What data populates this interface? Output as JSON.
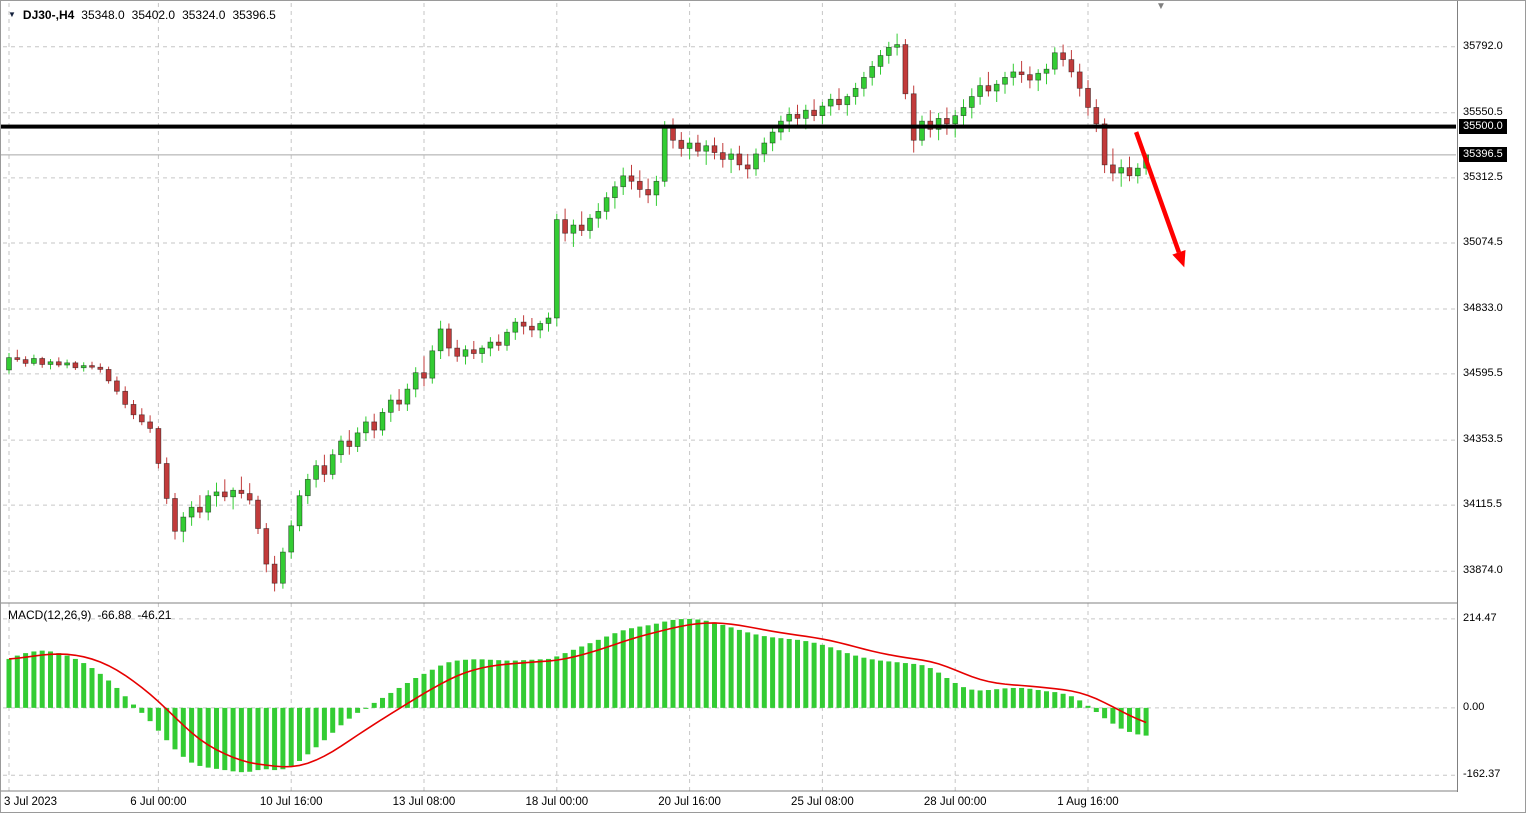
{
  "header": {
    "symbol_period": "DJ30-,H4",
    "open": "35348.0",
    "high": "35402.0",
    "low": "35324.0",
    "close": "35396.5"
  },
  "indicator": {
    "name": "MACD(12,26,9)",
    "main_value": "-66.88",
    "signal_value": "-46.21"
  },
  "icons": {
    "dropdown_triangle": "▼",
    "shift_marker": "▼"
  },
  "chart_data": {
    "type": "candlestick",
    "symbol": "DJ30-",
    "timeframe": "H4",
    "last_ohlc": {
      "open": 35348.0,
      "high": 35402.0,
      "low": 35324.0,
      "close": 35396.5
    },
    "price_axis": {
      "view_min": 33765,
      "view_max": 35952,
      "gridline_values": [
        35792.0,
        35550.5,
        35312.5,
        35074.5,
        34833.0,
        34595.5,
        34353.5,
        34115.5,
        33874.0
      ],
      "gridline_labels": [
        "35792.0",
        "35550.5",
        "35312.5",
        "35074.5",
        "34833.0",
        "34595.5",
        "34353.5",
        "34115.5",
        "33874.0"
      ]
    },
    "time_axis": {
      "labels": [
        {
          "text": "3 Jul 2023",
          "bar": 0
        },
        {
          "text": "6 Jul 00:00",
          "bar": 18
        },
        {
          "text": "10 Jul 16:00",
          "bar": 34
        },
        {
          "text": "13 Jul 08:00",
          "bar": 50
        },
        {
          "text": "18 Jul 00:00",
          "bar": 66
        },
        {
          "text": "20 Jul 16:00",
          "bar": 82
        },
        {
          "text": "25 Jul 08:00",
          "bar": 98
        },
        {
          "text": "28 Jul 00:00",
          "bar": 114
        },
        {
          "text": "1 Aug 16:00",
          "bar": 130
        }
      ]
    },
    "levels": {
      "resistance": {
        "price": 35500.0,
        "label": "35500.0"
      },
      "last_price": {
        "price": 35396.5,
        "label": "35396.5"
      }
    },
    "annotation_arrow": {
      "from_bar": 135.8,
      "from_price": 35480,
      "to_bar": 141.6,
      "to_price": 34985
    },
    "candles": [
      [
        34610,
        34672,
        34596,
        34655
      ],
      [
        34655,
        34684,
        34640,
        34648
      ],
      [
        34648,
        34660,
        34622,
        34634
      ],
      [
        34634,
        34666,
        34626,
        34652
      ],
      [
        34652,
        34658,
        34618,
        34630
      ],
      [
        34630,
        34650,
        34612,
        34640
      ],
      [
        34640,
        34656,
        34620,
        34628
      ],
      [
        34628,
        34648,
        34616,
        34636
      ],
      [
        34636,
        34642,
        34610,
        34618
      ],
      [
        34618,
        34638,
        34604,
        34626
      ],
      [
        34626,
        34640,
        34612,
        34620
      ],
      [
        34620,
        34634,
        34600,
        34612
      ],
      [
        34612,
        34622,
        34560,
        34570
      ],
      [
        34570,
        34586,
        34520,
        34532
      ],
      [
        34532,
        34550,
        34470,
        34484
      ],
      [
        34484,
        34500,
        34430,
        34446
      ],
      [
        34446,
        34470,
        34408,
        34420
      ],
      [
        34420,
        34444,
        34380,
        34396
      ],
      [
        34396,
        34404,
        34250,
        34268
      ],
      [
        34268,
        34290,
        34120,
        34140
      ],
      [
        34140,
        34160,
        33990,
        34020
      ],
      [
        34020,
        34090,
        33980,
        34072
      ],
      [
        34072,
        34130,
        34040,
        34108
      ],
      [
        34108,
        34152,
        34068,
        34090
      ],
      [
        34090,
        34170,
        34060,
        34150
      ],
      [
        34150,
        34198,
        34110,
        34164
      ],
      [
        34164,
        34210,
        34130,
        34146
      ],
      [
        34146,
        34180,
        34100,
        34170
      ],
      [
        34170,
        34220,
        34140,
        34158
      ],
      [
        34158,
        34196,
        34118,
        34134
      ],
      [
        34134,
        34150,
        34010,
        34030
      ],
      [
        34030,
        34050,
        33870,
        33900
      ],
      [
        33900,
        33930,
        33800,
        33830
      ],
      [
        33830,
        33960,
        33810,
        33944
      ],
      [
        33944,
        34060,
        33920,
        34040
      ],
      [
        34040,
        34170,
        34020,
        34150
      ],
      [
        34150,
        34230,
        34120,
        34210
      ],
      [
        34210,
        34280,
        34180,
        34260
      ],
      [
        34260,
        34300,
        34200,
        34228
      ],
      [
        34228,
        34320,
        34210,
        34300
      ],
      [
        34300,
        34370,
        34270,
        34350
      ],
      [
        34350,
        34390,
        34300,
        34330
      ],
      [
        34330,
        34400,
        34310,
        34380
      ],
      [
        34380,
        34440,
        34350,
        34420
      ],
      [
        34420,
        34450,
        34360,
        34390
      ],
      [
        34390,
        34470,
        34370,
        34455
      ],
      [
        34455,
        34520,
        34420,
        34500
      ],
      [
        34500,
        34540,
        34460,
        34485
      ],
      [
        34485,
        34560,
        34460,
        34540
      ],
      [
        34540,
        34620,
        34510,
        34600
      ],
      [
        34600,
        34660,
        34550,
        34580
      ],
      [
        34580,
        34700,
        34560,
        34680
      ],
      [
        34680,
        34790,
        34650,
        34760
      ],
      [
        34760,
        34780,
        34660,
        34690
      ],
      [
        34690,
        34720,
        34640,
        34660
      ],
      [
        34660,
        34700,
        34630,
        34684
      ],
      [
        34684,
        34716,
        34650,
        34670
      ],
      [
        34670,
        34700,
        34636,
        34690
      ],
      [
        34690,
        34730,
        34660,
        34712
      ],
      [
        34712,
        34740,
        34680,
        34700
      ],
      [
        34700,
        34760,
        34680,
        34748
      ],
      [
        34748,
        34800,
        34720,
        34785
      ],
      [
        34785,
        34810,
        34740,
        34770
      ],
      [
        34770,
        34800,
        34730,
        34756
      ],
      [
        34756,
        34790,
        34726,
        34780
      ],
      [
        34780,
        34820,
        34750,
        34800
      ],
      [
        34800,
        35180,
        34770,
        35160
      ],
      [
        35160,
        35200,
        35080,
        35110
      ],
      [
        35110,
        35160,
        35060,
        35140
      ],
      [
        35140,
        35190,
        35100,
        35120
      ],
      [
        35120,
        35180,
        35090,
        35165
      ],
      [
        35165,
        35220,
        35130,
        35190
      ],
      [
        35190,
        35260,
        35160,
        35240
      ],
      [
        35240,
        35300,
        35200,
        35280
      ],
      [
        35280,
        35350,
        35250,
        35320
      ],
      [
        35320,
        35360,
        35270,
        35300
      ],
      [
        35300,
        35340,
        35240,
        35270
      ],
      [
        35270,
        35310,
        35220,
        35250
      ],
      [
        35250,
        35320,
        35210,
        35300
      ],
      [
        35300,
        35520,
        35280,
        35500
      ],
      [
        35500,
        35530,
        35420,
        35450
      ],
      [
        35450,
        35480,
        35390,
        35420
      ],
      [
        35420,
        35460,
        35380,
        35440
      ],
      [
        35440,
        35470,
        35390,
        35410
      ],
      [
        35410,
        35450,
        35360,
        35430
      ],
      [
        35430,
        35460,
        35380,
        35405
      ],
      [
        35405,
        35440,
        35350,
        35380
      ],
      [
        35380,
        35420,
        35330,
        35400
      ],
      [
        35400,
        35430,
        35340,
        35360
      ],
      [
        35360,
        35400,
        35310,
        35345
      ],
      [
        35345,
        35420,
        35320,
        35400
      ],
      [
        35400,
        35460,
        35370,
        35440
      ],
      [
        35440,
        35500,
        35410,
        35480
      ],
      [
        35480,
        35540,
        35450,
        35520
      ],
      [
        35520,
        35570,
        35480,
        35545
      ],
      [
        35545,
        35580,
        35500,
        35530
      ],
      [
        35530,
        35580,
        35490,
        35560
      ],
      [
        35560,
        35600,
        35520,
        35540
      ],
      [
        35540,
        35590,
        35510,
        35575
      ],
      [
        35575,
        35620,
        35540,
        35600
      ],
      [
        35600,
        35640,
        35560,
        35580
      ],
      [
        35580,
        35620,
        35540,
        35610
      ],
      [
        35610,
        35660,
        35580,
        35640
      ],
      [
        35640,
        35700,
        35610,
        35680
      ],
      [
        35680,
        35740,
        35650,
        35720
      ],
      [
        35720,
        35780,
        35690,
        35760
      ],
      [
        35760,
        35810,
        35730,
        35790
      ],
      [
        35790,
        35840,
        35760,
        35800
      ],
      [
        35800,
        35820,
        35600,
        35620
      ],
      [
        35620,
        35650,
        35405,
        35450
      ],
      [
        35450,
        35540,
        35430,
        35520
      ],
      [
        35520,
        35560,
        35460,
        35490
      ],
      [
        35490,
        35550,
        35450,
        35530
      ],
      [
        35530,
        35570,
        35470,
        35510
      ],
      [
        35510,
        35560,
        35460,
        35540
      ],
      [
        35540,
        35600,
        35500,
        35570
      ],
      [
        35570,
        35640,
        35530,
        35610
      ],
      [
        35610,
        35680,
        35580,
        35650
      ],
      [
        35650,
        35700,
        35610,
        35630
      ],
      [
        35630,
        35670,
        35590,
        35655
      ],
      [
        35655,
        35700,
        35620,
        35680
      ],
      [
        35680,
        35730,
        35650,
        35700
      ],
      [
        35700,
        35740,
        35660,
        35690
      ],
      [
        35690,
        35720,
        35640,
        35670
      ],
      [
        35670,
        35710,
        35630,
        35695
      ],
      [
        35695,
        35730,
        35655,
        35710
      ],
      [
        35710,
        35790,
        35690,
        35770
      ],
      [
        35770,
        35800,
        35720,
        35745
      ],
      [
        35745,
        35780,
        35680,
        35700
      ],
      [
        35700,
        35730,
        35610,
        35640
      ],
      [
        35640,
        35670,
        35540,
        35570
      ],
      [
        35570,
        35600,
        35480,
        35510
      ],
      [
        35510,
        35530,
        35330,
        35360
      ],
      [
        35360,
        35420,
        35300,
        35330
      ],
      [
        35330,
        35380,
        35280,
        35350
      ],
      [
        35350,
        35390,
        35300,
        35320
      ],
      [
        35320,
        35366,
        35292,
        35348
      ],
      [
        35348,
        35402,
        35324,
        35396.5
      ]
    ],
    "macd": {
      "params": "12,26,9",
      "signal_period": 9,
      "main_last": -66.88,
      "signal_last": -46.21,
      "axis": {
        "view_min": -198,
        "view_max": 248,
        "gridline_values": [
          214.47,
          0,
          -162.37
        ],
        "gridline_labels": [
          "214.47",
          "0.00",
          "-162.37"
        ]
      },
      "main": [
        118,
        126,
        132,
        136,
        138,
        136,
        132,
        126,
        118,
        108,
        96,
        82,
        66,
        48,
        28,
        8,
        -12,
        -32,
        -55,
        -78,
        -100,
        -118,
        -132,
        -140,
        -144,
        -147,
        -150,
        -153,
        -155,
        -154,
        -150,
        -148,
        -150,
        -148,
        -140,
        -128,
        -112,
        -95,
        -78,
        -60,
        -42,
        -26,
        -12,
        0,
        12,
        24,
        36,
        48,
        60,
        72,
        82,
        92,
        102,
        110,
        114,
        116,
        117,
        117,
        116,
        115,
        114,
        114,
        115,
        116,
        117,
        118,
        124,
        132,
        140,
        148,
        156,
        164,
        172,
        180,
        187,
        192,
        196,
        199,
        203,
        208,
        212,
        214,
        214.47,
        213,
        210,
        206,
        200,
        194,
        188,
        182,
        177,
        173,
        170,
        168,
        166,
        164,
        161,
        157,
        152,
        146,
        139,
        132,
        126,
        121,
        117,
        114,
        112,
        110,
        108,
        106,
        103,
        96,
        85,
        72,
        60,
        50,
        44,
        42,
        43,
        45,
        47,
        48,
        48,
        46,
        43,
        40,
        38,
        34,
        28,
        18,
        5,
        -10,
        -25,
        -38,
        -50,
        -58,
        -64,
        -66.88
      ]
    },
    "colors": {
      "bull": "#33CC33",
      "bear": "#C13B3B",
      "hist": "#33CC33",
      "signal": "#E60000",
      "grid": "#C6C6C6",
      "level": "#000000",
      "last_price_line": "#A8A8A8",
      "arrow": "#FF0000",
      "separator": "#808080",
      "price_box_bg": "#000000",
      "price_box_text": "#FFFFFF"
    }
  }
}
